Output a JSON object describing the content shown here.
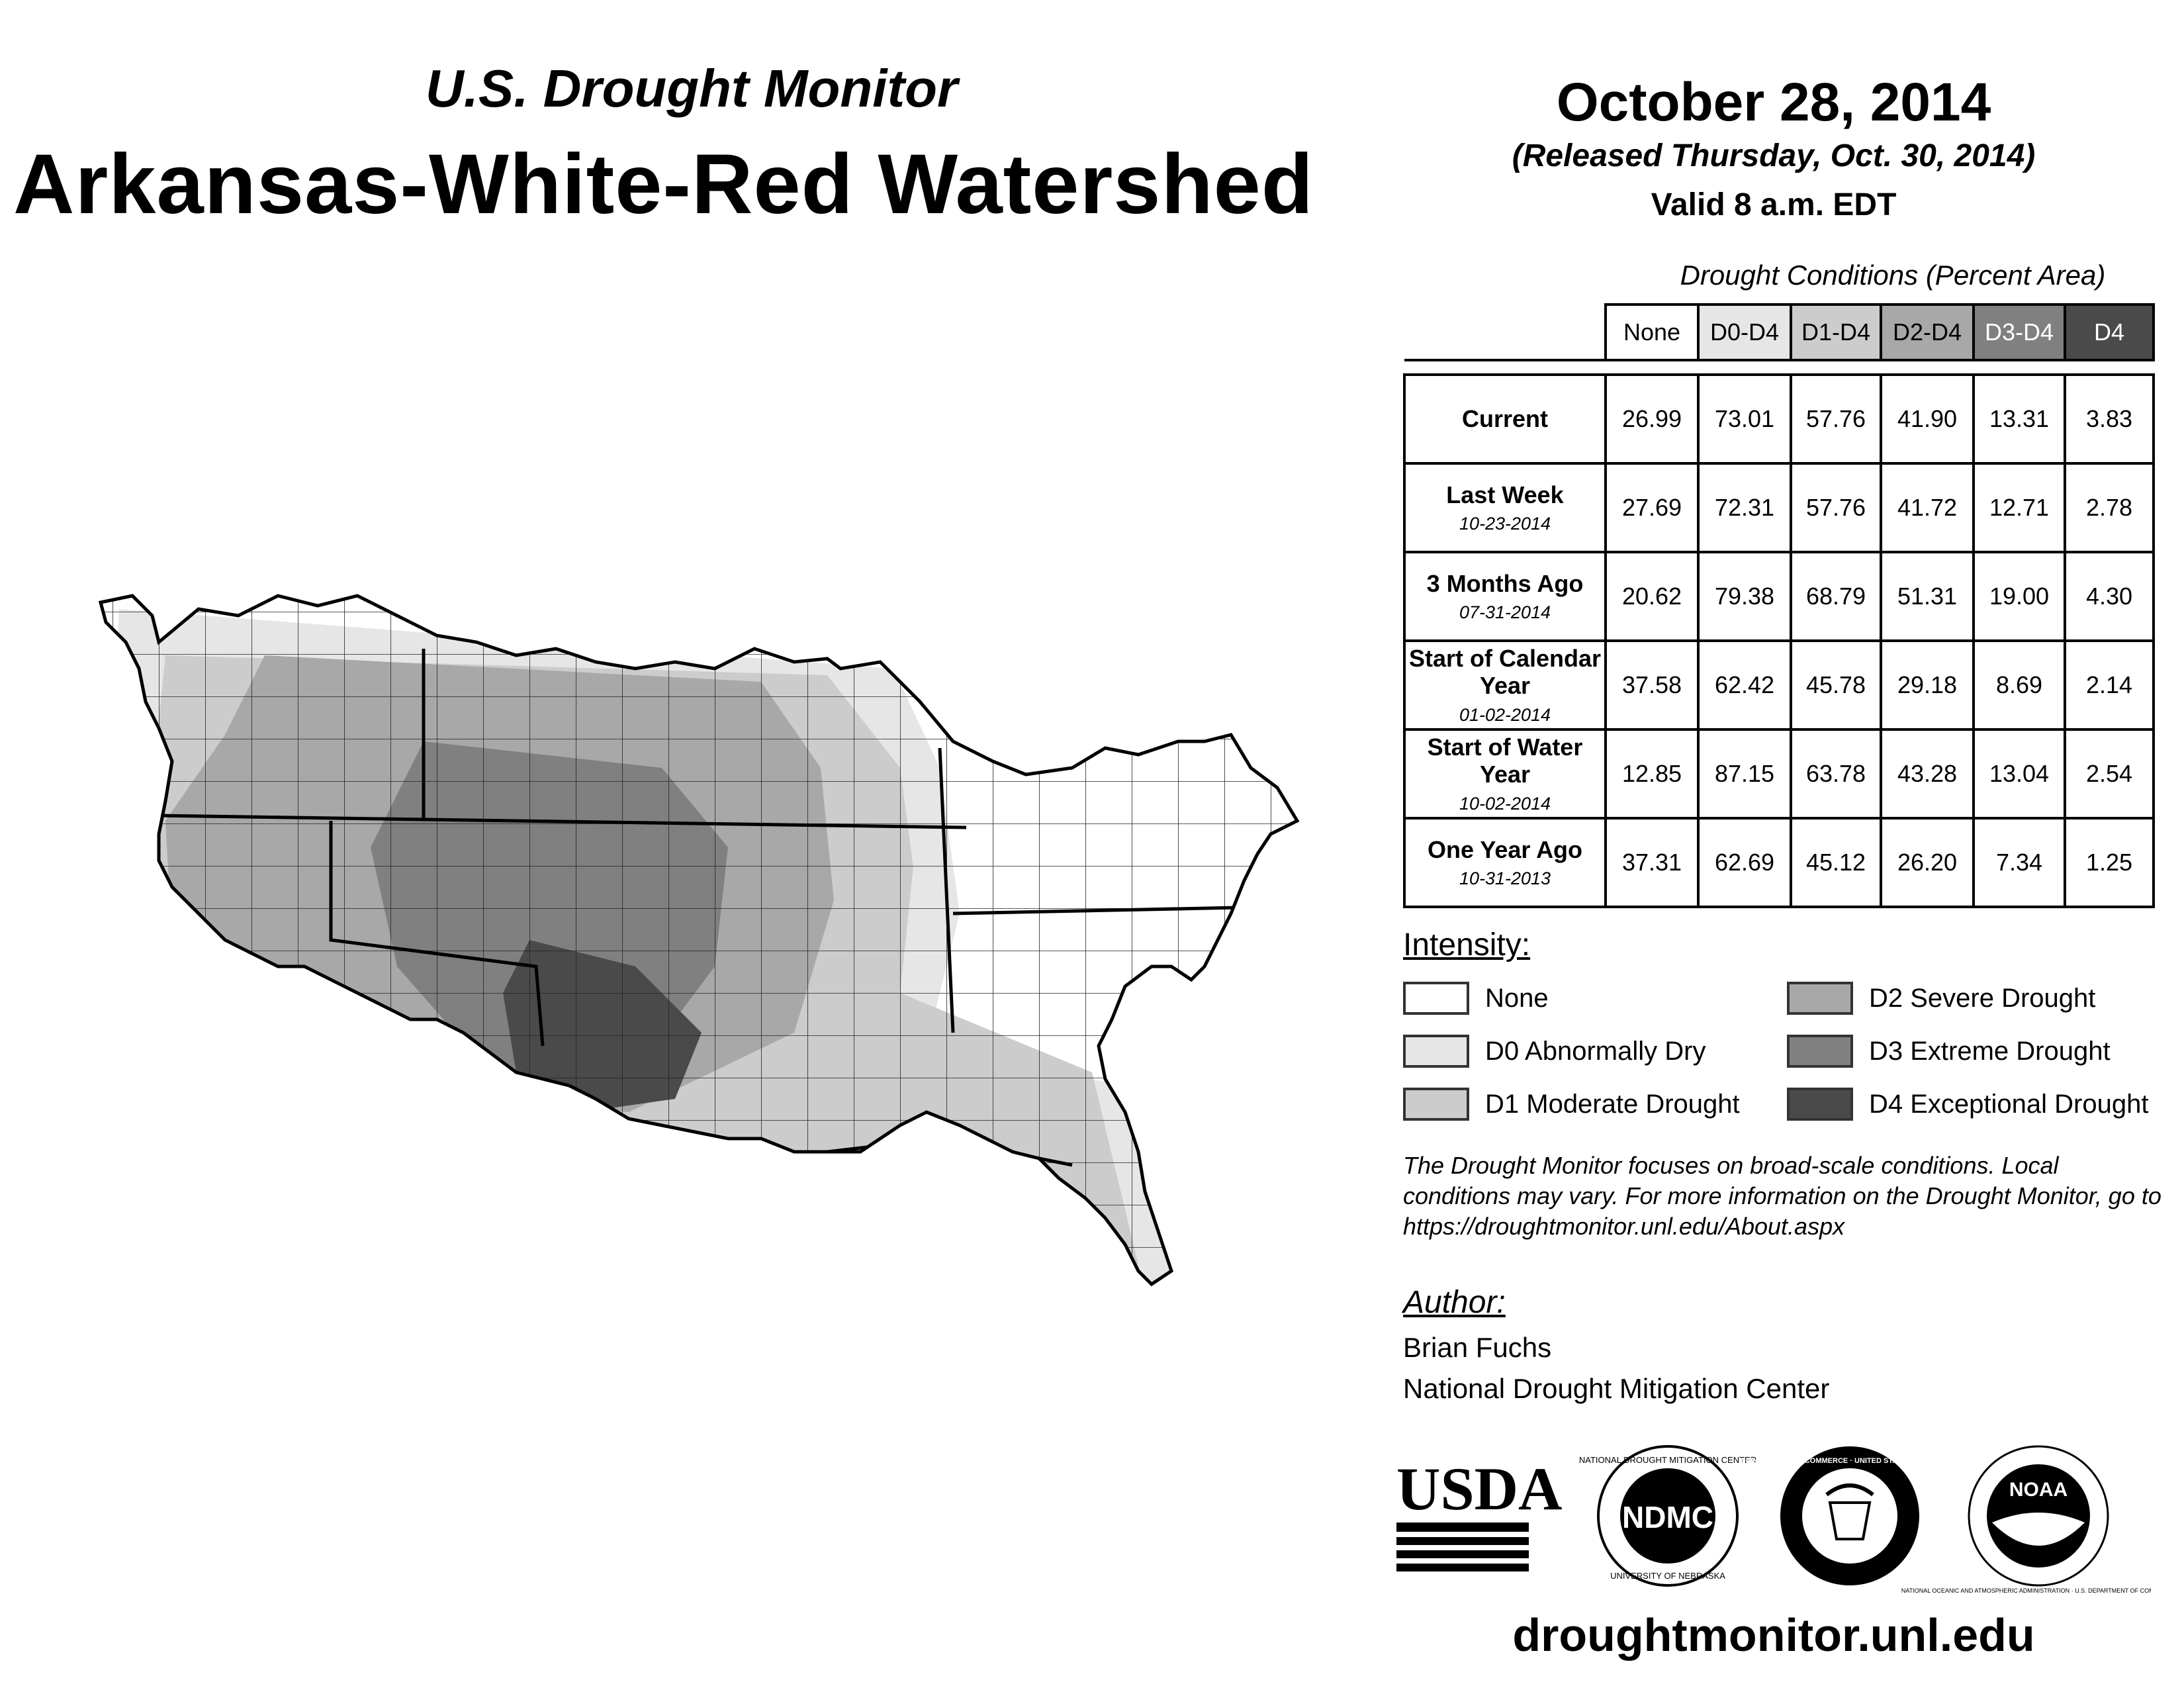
{
  "header": {
    "subtitle": "U.S. Drought Monitor",
    "title": "Arkansas-White-Red Watershed",
    "date": "October 28, 2014",
    "released": "(Released Thursday, Oct. 30, 2014)",
    "valid": "Valid 8 a.m. EDT"
  },
  "table": {
    "caption": "Drought Conditions (Percent Area)",
    "columns": [
      "None",
      "D0-D4",
      "D1-D4",
      "D2-D4",
      "D3-D4",
      "D4"
    ],
    "column_colors": [
      "#ffffff",
      "#e6e6e6",
      "#cccccc",
      "#a8a8a8",
      "#808080",
      "#4a4a4a"
    ],
    "rows": [
      {
        "label": "Current",
        "date": "",
        "values": [
          "26.99",
          "73.01",
          "57.76",
          "41.90",
          "13.31",
          "3.83"
        ]
      },
      {
        "label": "Last Week",
        "date": "10-23-2014",
        "values": [
          "27.69",
          "72.31",
          "57.76",
          "41.72",
          "12.71",
          "2.78"
        ]
      },
      {
        "label": "3 Months Ago",
        "date": "07-31-2014",
        "values": [
          "20.62",
          "79.38",
          "68.79",
          "51.31",
          "19.00",
          "4.30"
        ]
      },
      {
        "label": "Start of Calendar Year",
        "date": "01-02-2014",
        "values": [
          "37.58",
          "62.42",
          "45.78",
          "29.18",
          "8.69",
          "2.14"
        ]
      },
      {
        "label": "Start of Water Year",
        "date": "10-02-2014",
        "values": [
          "12.85",
          "87.15",
          "63.78",
          "43.28",
          "13.04",
          "2.54"
        ]
      },
      {
        "label": "One Year Ago",
        "date": "10-31-2013",
        "values": [
          "37.31",
          "62.69",
          "45.12",
          "26.20",
          "7.34",
          "1.25"
        ]
      }
    ]
  },
  "legend": {
    "heading": "Intensity:",
    "items": [
      {
        "label": "None",
        "color": "#ffffff"
      },
      {
        "label": "D0 Abnormally Dry",
        "color": "#e6e6e6"
      },
      {
        "label": "D1 Moderate Drought",
        "color": "#cccccc"
      },
      {
        "label": "D2 Severe Drought",
        "color": "#a8a8a8"
      },
      {
        "label": "D3 Extreme Drought",
        "color": "#808080"
      },
      {
        "label": "D4 Exceptional Drought",
        "color": "#4a4a4a"
      }
    ]
  },
  "note": "The Drought Monitor focuses on broad-scale conditions. Local conditions may vary. For more information on the Drought Monitor, go to https://droughtmonitor.unl.edu/About.aspx",
  "author": {
    "heading": "Author:",
    "name": "Brian Fuchs",
    "organization": "National Drought Mitigation Center"
  },
  "logos": {
    "usda": "USDA",
    "ndmc": "NDMC",
    "ndmc_ring_top": "NATIONAL DROUGHT MITIGATION CENTER",
    "ndmc_ring_bottom": "UNIVERSITY OF NEBRASKA",
    "doc_ring": "DEPARTMENT OF COMMERCE · UNITED STATES OF AMERICA",
    "noaa": "NOAA",
    "noaa_ring": "NATIONAL OCEANIC AND ATMOSPHERIC ADMINISTRATION · U.S. DEPARTMENT OF COMMERCE"
  },
  "website": "droughtmonitor.unl.edu"
}
